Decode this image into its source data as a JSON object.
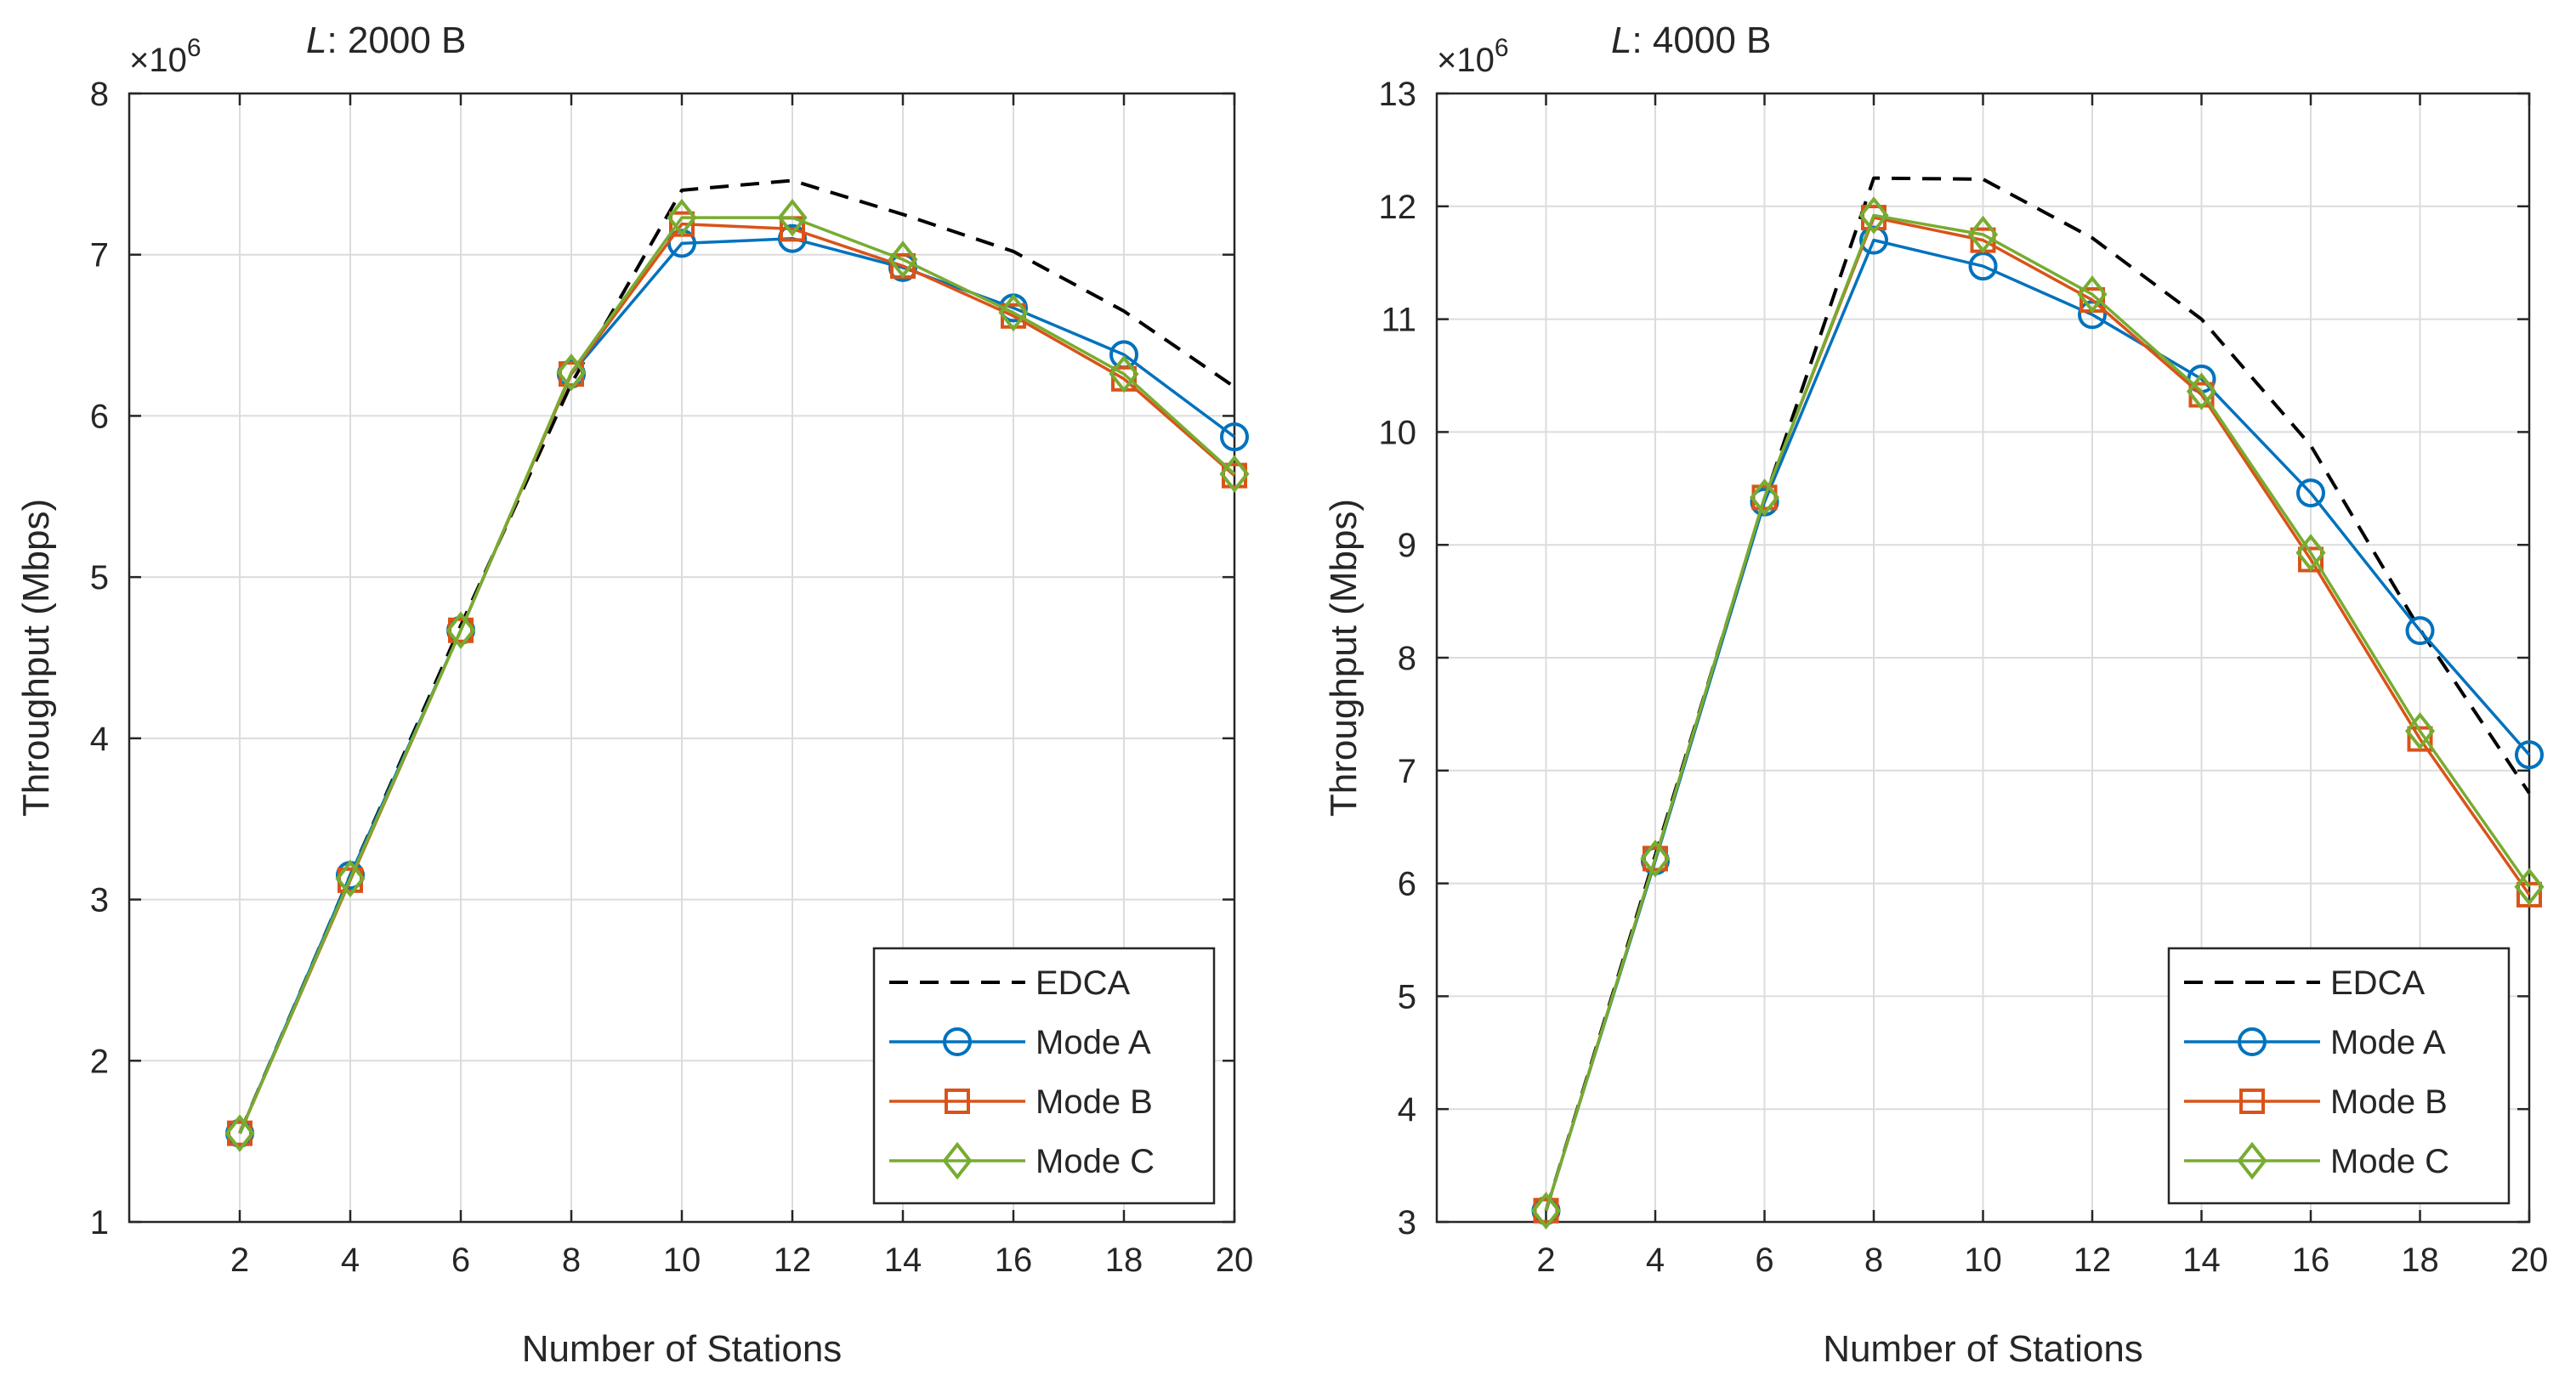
{
  "figure": {
    "panel_count": 2
  },
  "chart_data": [
    {
      "type": "line",
      "title_var": "L",
      "title_rest": ": 2000 B",
      "xlabel": "Number of Stations",
      "ylabel": "Throughput (Mbps)",
      "exponent_label": "×10",
      "exponent_power": "6",
      "grid": true,
      "legend": "bottom-right",
      "xlim": [
        0,
        20
      ],
      "ylim": [
        1,
        8
      ],
      "xticks": [
        2,
        4,
        6,
        8,
        10,
        12,
        14,
        16,
        18,
        20
      ],
      "yticks": [
        1,
        2,
        3,
        4,
        5,
        6,
        7,
        8
      ],
      "x": [
        2,
        4,
        6,
        8,
        10,
        12,
        14,
        16,
        18,
        20
      ],
      "series": [
        {
          "name": "EDCA",
          "style": "dashed",
          "marker": "none",
          "color": "#000000",
          "values": [
            1.55,
            3.15,
            4.7,
            6.2,
            7.4,
            7.46,
            7.25,
            7.02,
            6.65,
            6.18
          ]
        },
        {
          "name": "Mode A",
          "style": "solid",
          "marker": "circle",
          "color": "#0072BD",
          "values": [
            1.55,
            3.15,
            4.67,
            6.26,
            7.07,
            7.1,
            6.92,
            6.67,
            6.38,
            5.87
          ]
        },
        {
          "name": "Mode B",
          "style": "solid",
          "marker": "square",
          "color": "#D95319",
          "values": [
            1.55,
            3.12,
            4.67,
            6.26,
            7.19,
            7.16,
            6.93,
            6.62,
            6.23,
            5.63
          ]
        },
        {
          "name": "Mode C",
          "style": "solid",
          "marker": "diamond",
          "color": "#77AC30",
          "values": [
            1.55,
            3.13,
            4.67,
            6.27,
            7.23,
            7.23,
            6.97,
            6.64,
            6.26,
            5.64
          ]
        }
      ]
    },
    {
      "type": "line",
      "title_var": "L",
      "title_rest": ": 4000 B",
      "xlabel": "Number of Stations",
      "ylabel": "Throughput (Mbps)",
      "exponent_label": "×10",
      "exponent_power": "6",
      "grid": true,
      "legend": "bottom-right",
      "xlim": [
        0,
        20
      ],
      "ylim": [
        3,
        13
      ],
      "xticks": [
        2,
        4,
        6,
        8,
        10,
        12,
        14,
        16,
        18,
        20
      ],
      "yticks": [
        3,
        4,
        5,
        6,
        7,
        8,
        9,
        10,
        11,
        12,
        13
      ],
      "x": [
        2,
        4,
        6,
        8,
        10,
        12,
        14,
        16,
        18,
        20
      ],
      "series": [
        {
          "name": "EDCA",
          "style": "dashed",
          "marker": "none",
          "color": "#000000",
          "values": [
            3.1,
            6.25,
            9.4,
            12.25,
            12.24,
            11.72,
            11.0,
            9.88,
            8.25,
            6.8
          ]
        },
        {
          "name": "Mode A",
          "style": "solid",
          "marker": "circle",
          "color": "#0072BD",
          "values": [
            3.1,
            6.2,
            9.38,
            11.7,
            11.47,
            11.04,
            10.47,
            9.46,
            8.24,
            7.14
          ]
        },
        {
          "name": "Mode B",
          "style": "solid",
          "marker": "square",
          "color": "#D95319",
          "values": [
            3.1,
            6.22,
            9.42,
            11.9,
            11.7,
            11.17,
            10.33,
            8.87,
            7.28,
            5.9
          ]
        },
        {
          "name": "Mode C",
          "style": "solid",
          "marker": "diamond",
          "color": "#77AC30",
          "values": [
            3.1,
            6.22,
            9.42,
            11.92,
            11.75,
            11.22,
            10.36,
            8.93,
            7.35,
            5.97
          ]
        }
      ]
    }
  ]
}
